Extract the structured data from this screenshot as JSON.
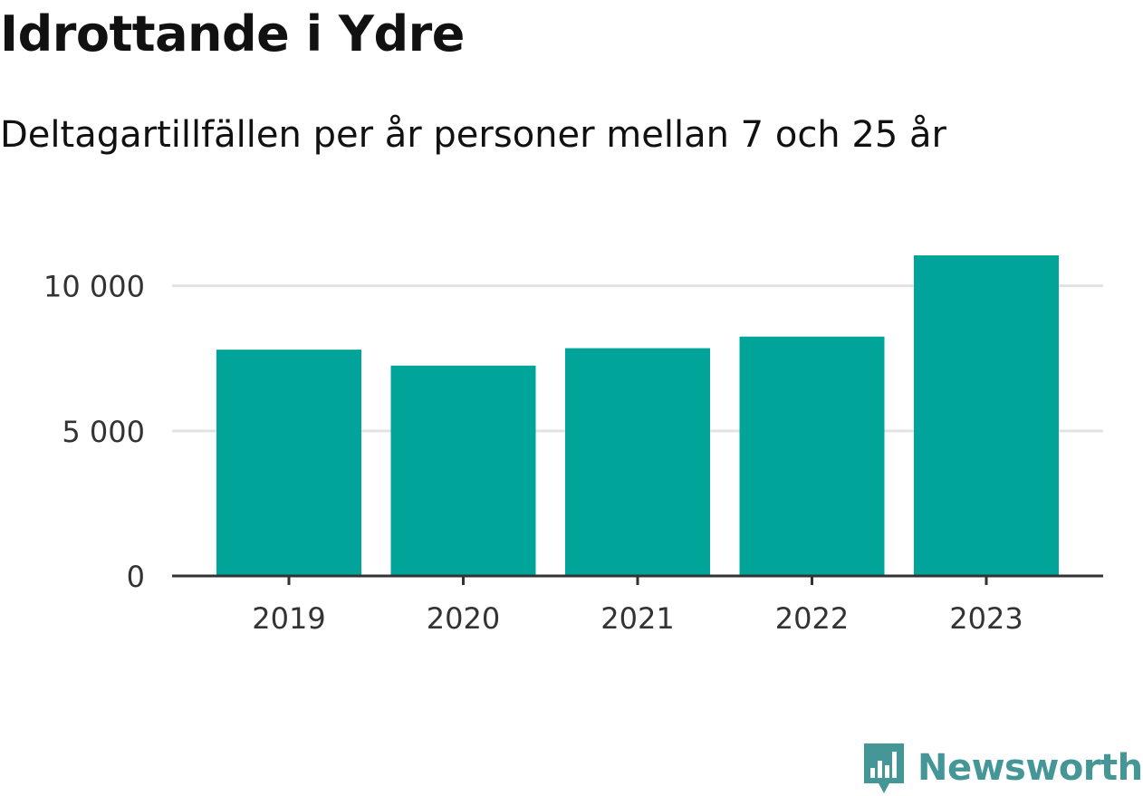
{
  "chart_data": {
    "type": "bar",
    "title": "Idrottande i Ydre",
    "subtitle": "Deltagartillfällen per år personer mellan 7 och 25 år",
    "categories": [
      "2019",
      "2020",
      "2021",
      "2022",
      "2023"
    ],
    "values": [
      7800,
      7250,
      7850,
      8250,
      11050
    ],
    "ylim": [
      0,
      11050
    ],
    "yticks": [
      0,
      5000,
      10000
    ],
    "ytick_labels": [
      "0",
      "5 000",
      "10 000"
    ],
    "xlabel": "",
    "ylabel": "",
    "grid": true,
    "colors": {
      "bar": "#00a499",
      "grid": "#e2e2e2",
      "axis": "#333333"
    }
  },
  "brand": {
    "name": "Newsworthy",
    "icon": "newsworthy-logo-icon",
    "color": "#449796"
  }
}
